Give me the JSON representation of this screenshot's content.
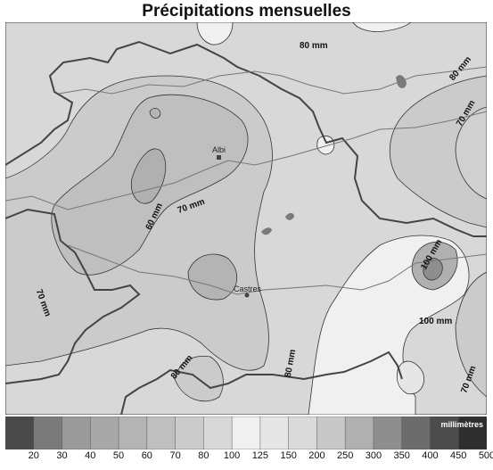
{
  "title": "Précipitations mensuelles",
  "contour_labels": {
    "north": "80 mm",
    "east_top": "80 mm",
    "east_mid": "70 mm",
    "center_60": "60 mm",
    "center_70": "70 mm",
    "west": "70 mm",
    "southeast_100a": "100 mm",
    "southeast_100b": "100 mm",
    "south_80a": "80 mm",
    "south_80b": "80 mm",
    "southeast_70": "70 mm"
  },
  "cities": {
    "albi": "Albi",
    "castres": "Castres"
  },
  "legend": {
    "unit": "millimètres",
    "ticks": [
      "20",
      "30",
      "40",
      "50",
      "60",
      "70",
      "80",
      "100",
      "125",
      "150",
      "200",
      "250",
      "300",
      "350",
      "400",
      "450",
      "500"
    ],
    "colors": [
      "#4a4a4a",
      "#7a7a7a",
      "#9a9a9a",
      "#a8a8a8",
      "#b4b4b4",
      "#bfbfbf",
      "#cbcbcb",
      "#d8d8d8",
      "#f0f0f0",
      "#e6e6e6",
      "#dadada",
      "#c8c8c8",
      "#b0b0b0",
      "#8e8e8e",
      "#6c6c6c",
      "#4c4c4c",
      "#2e2e2e"
    ]
  }
}
